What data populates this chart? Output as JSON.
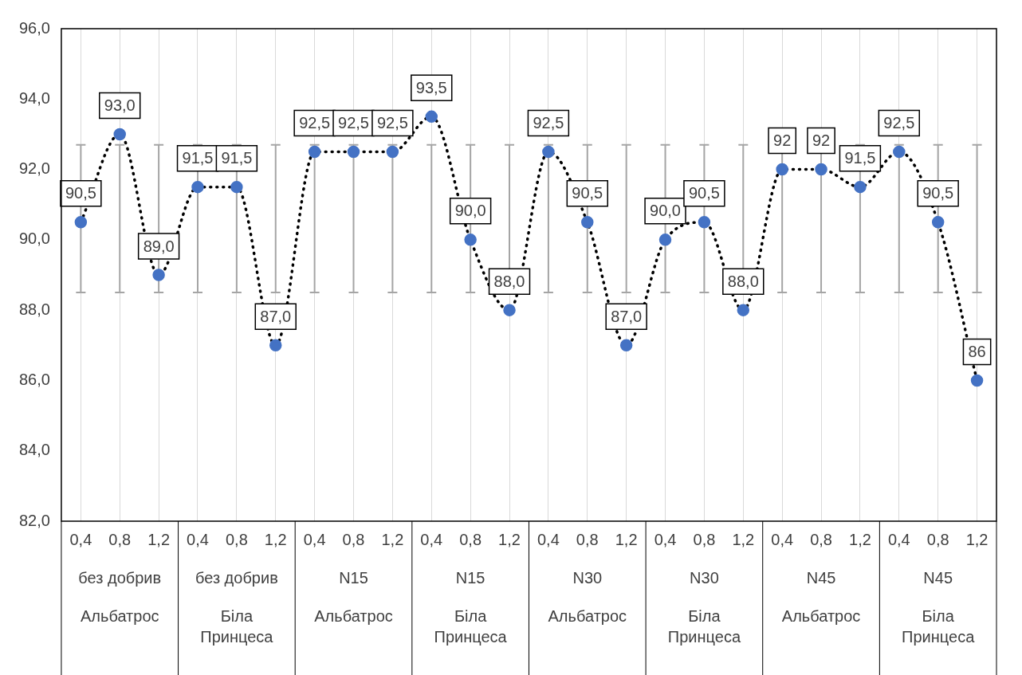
{
  "chart_data": {
    "type": "line",
    "categories": [
      "0,4",
      "0,8",
      "1,2",
      "0,4",
      "0,8",
      "1,2",
      "0,4",
      "0,8",
      "1,2",
      "0,4",
      "0,8",
      "1,2",
      "0,4",
      "0,8",
      "1,2",
      "0,4",
      "0,8",
      "1,2",
      "0,4",
      "0,8",
      "1,2",
      "0,4",
      "0,8",
      "1,2"
    ],
    "series": [
      {
        "color": "#4472c4",
        "values": [
          90.5,
          93,
          89,
          91.5,
          91.5,
          87,
          92.5,
          92.5,
          92.5,
          93.5,
          90,
          88,
          92.5,
          90.5,
          87,
          90,
          90.5,
          88,
          92,
          92,
          91.5,
          92.5,
          90.5,
          86
        ],
        "value_labels": [
          "90,5",
          "93,0",
          "89,0",
          "91,5",
          "91,5",
          "87,0",
          "92,5",
          "92,5",
          "92,5",
          "93,5",
          "90,0",
          "88,0",
          "92,5",
          "90,5",
          "87,0",
          "90,0",
          "90,5",
          "88,0",
          "92",
          "92",
          "91,5",
          "92,5",
          "90,5",
          "86"
        ],
        "errors": [
          [
            88.5,
            92.7
          ],
          [
            88.5,
            92.7
          ],
          [
            88.5,
            92.7
          ],
          [
            88.5,
            92.7
          ],
          [
            88.5,
            92.7
          ],
          [
            88.5,
            92.7
          ],
          [
            88.5,
            92.7
          ],
          [
            88.5,
            92.7
          ],
          [
            88.5,
            92.7
          ],
          [
            88.5,
            92.7
          ],
          [
            88.5,
            92.7
          ],
          [
            88.5,
            92.7
          ],
          [
            88.5,
            92.7
          ],
          [
            88.5,
            92.7
          ],
          [
            88.5,
            92.7
          ],
          [
            88.5,
            92.7
          ],
          [
            88.5,
            92.7
          ],
          [
            88.5,
            92.7
          ],
          [
            88.5,
            92.7
          ],
          [
            88.5,
            92.7
          ],
          [
            88.5,
            92.7
          ],
          [
            88.5,
            92.7
          ],
          [
            88.5,
            92.7
          ],
          [
            88.5,
            92.7
          ]
        ]
      }
    ],
    "annotations": [
      "без добрив",
      "без добрив",
      "N15",
      "N15",
      "N30",
      "N30",
      "N45",
      "N45",
      "Альбатрос",
      "Біла Принцеса",
      "Альбатрос",
      "Біла Принцеса",
      "Альбатрос",
      "Біла Принцеса",
      "Альбатрос",
      "Біла Принцеса"
    ],
    "ylim": [
      82,
      96
    ],
    "yticks": [
      {
        "value": 82,
        "label": "82,0"
      },
      {
        "value": 84,
        "label": "84,0"
      },
      {
        "value": 86,
        "label": "86,0"
      },
      {
        "value": 88,
        "label": "88,0"
      },
      {
        "value": 90,
        "label": "90,0"
      },
      {
        "value": 92,
        "label": "92,0"
      },
      {
        "value": 94,
        "label": "94,0"
      },
      {
        "value": 96,
        "label": "96,0"
      }
    ],
    "grid": "x",
    "legend": false,
    "marker": "circle",
    "line_style": "dotted"
  }
}
